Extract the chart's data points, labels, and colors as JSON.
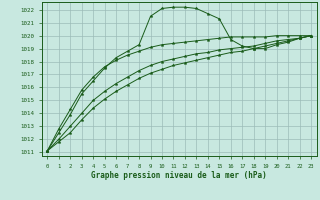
{
  "title": "Graphe pression niveau de la mer (hPa)",
  "background_color": "#c8e8e0",
  "grid_color": "#9cbcb8",
  "line_color": "#1a5c1a",
  "xlim": [
    -0.5,
    23.5
  ],
  "ylim": [
    1010.7,
    1022.6
  ],
  "yticks": [
    1011,
    1012,
    1013,
    1014,
    1015,
    1016,
    1017,
    1018,
    1019,
    1020,
    1021,
    1022
  ],
  "xticks": [
    0,
    1,
    2,
    3,
    4,
    5,
    6,
    7,
    8,
    9,
    10,
    11,
    12,
    13,
    14,
    15,
    16,
    17,
    18,
    19,
    20,
    21,
    22,
    23
  ],
  "s1_x": [
    0,
    1,
    2,
    3,
    4,
    5,
    6,
    7,
    8,
    9,
    10,
    11,
    12,
    13,
    14,
    15,
    16,
    17,
    18,
    19,
    20,
    21,
    22,
    23
  ],
  "s1_y": [
    1011.1,
    1012.5,
    1013.9,
    1015.5,
    1016.5,
    1017.5,
    1018.3,
    1018.8,
    1019.3,
    1021.5,
    1022.1,
    1022.2,
    1022.2,
    1022.1,
    1021.7,
    1021.3,
    1019.7,
    1019.2,
    1019.0,
    1019.0,
    1019.3,
    1019.5,
    1019.8,
    1020.0
  ],
  "s2_x": [
    0,
    1,
    2,
    3,
    4,
    5,
    6,
    7,
    8,
    9,
    10,
    11,
    12,
    13,
    14,
    15,
    16,
    17,
    18,
    19,
    20,
    21,
    22,
    23
  ],
  "s2_y": [
    1011.1,
    1011.8,
    1012.5,
    1013.5,
    1014.4,
    1015.1,
    1015.7,
    1016.2,
    1016.7,
    1017.1,
    1017.4,
    1017.7,
    1017.9,
    1018.1,
    1018.3,
    1018.5,
    1018.7,
    1018.8,
    1019.0,
    1019.2,
    1019.4,
    1019.6,
    1019.8,
    1020.0
  ],
  "s3_x": [
    0,
    1,
    2,
    3,
    4,
    5,
    6,
    7,
    8,
    9,
    10,
    11,
    12,
    13,
    14,
    15,
    16,
    17,
    18,
    19,
    20,
    21,
    22,
    23
  ],
  "s3_y": [
    1011.1,
    1012.0,
    1013.0,
    1014.0,
    1015.0,
    1015.7,
    1016.3,
    1016.8,
    1017.3,
    1017.7,
    1018.0,
    1018.2,
    1018.4,
    1018.6,
    1018.7,
    1018.9,
    1019.0,
    1019.1,
    1019.2,
    1019.4,
    1019.6,
    1019.7,
    1019.8,
    1020.0
  ],
  "s4_x": [
    0,
    1,
    2,
    3,
    4,
    5,
    6,
    7,
    8,
    9,
    10,
    11,
    12,
    13,
    14,
    15,
    16,
    17,
    18,
    19,
    20,
    21,
    22,
    23
  ],
  "s4_y": [
    1011.1,
    1012.8,
    1014.3,
    1015.8,
    1016.8,
    1017.6,
    1018.1,
    1018.5,
    1018.8,
    1019.1,
    1019.3,
    1019.4,
    1019.5,
    1019.6,
    1019.7,
    1019.8,
    1019.9,
    1019.9,
    1019.9,
    1019.9,
    1020.0,
    1020.0,
    1020.0,
    1020.0
  ]
}
